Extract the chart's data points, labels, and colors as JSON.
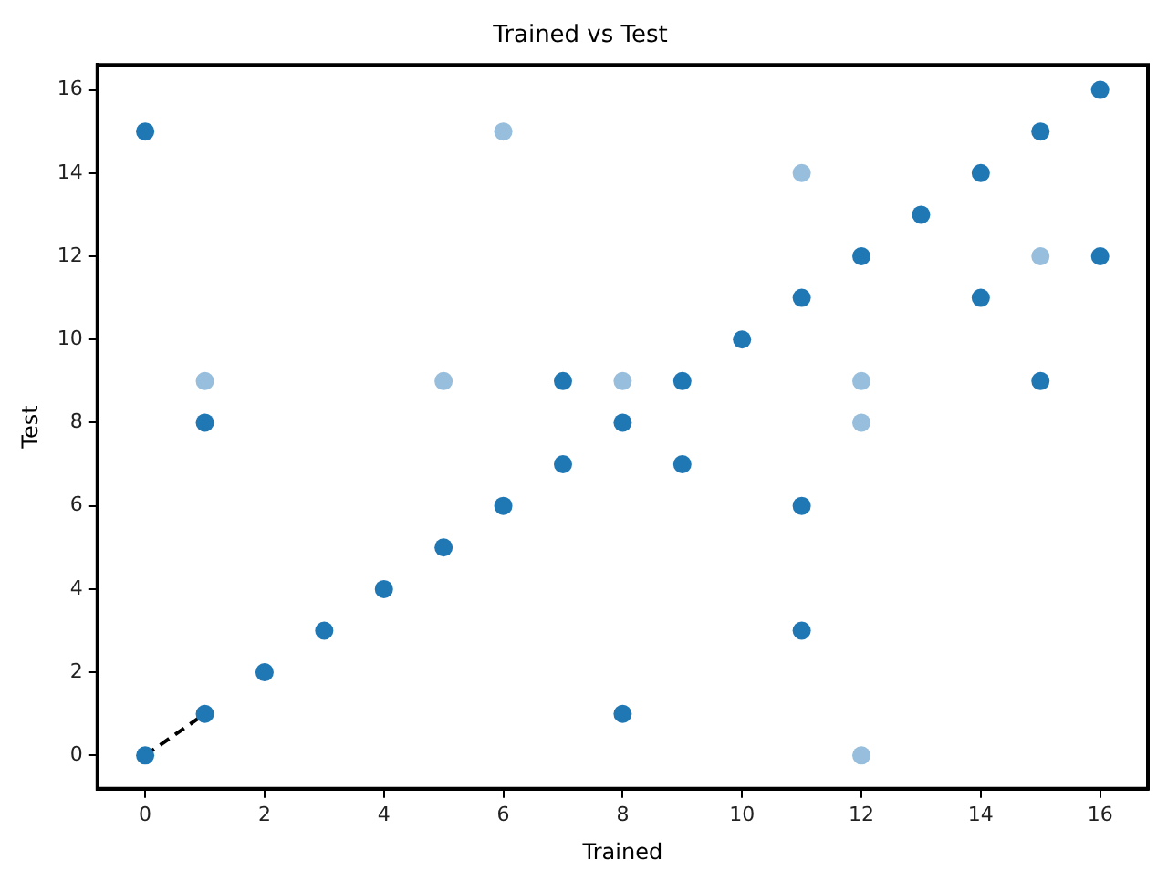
{
  "chart_data": {
    "type": "scatter",
    "title": "Trained vs Test",
    "xlabel": "Trained",
    "ylabel": "Test",
    "xlim": [
      -0.8,
      16.8
    ],
    "ylim": [
      -0.8,
      16.6
    ],
    "xticks": [
      0,
      2,
      4,
      6,
      8,
      10,
      12,
      14,
      16
    ],
    "yticks": [
      0,
      2,
      4,
      6,
      8,
      10,
      12,
      14,
      16
    ],
    "grid": false,
    "legend": false,
    "marker": "circle",
    "series": [
      {
        "color": "#1f77b4",
        "x": [
          0,
          0,
          1,
          1,
          2,
          3,
          4,
          5,
          6,
          7,
          7,
          8,
          8,
          9,
          9,
          10,
          11,
          11,
          11,
          12,
          13,
          14,
          14,
          15,
          15,
          16,
          16
        ],
        "values": [
          15,
          0,
          8,
          1,
          2,
          3,
          4,
          5,
          6,
          7,
          9,
          8,
          1,
          9,
          7,
          10,
          11,
          6,
          3,
          12,
          13,
          14,
          11,
          15,
          9,
          16,
          12
        ]
      },
      {
        "color": "#97bedc",
        "x": [
          1,
          5,
          6,
          8,
          11,
          12,
          12,
          12,
          15
        ],
        "values": [
          9,
          9,
          15,
          9,
          14,
          9,
          8,
          0,
          12
        ]
      },
      {
        "type": "line",
        "color": "#000000",
        "line_style": "dashed",
        "marker": "none",
        "x": [
          0,
          1
        ],
        "values": [
          0,
          1
        ]
      }
    ]
  }
}
